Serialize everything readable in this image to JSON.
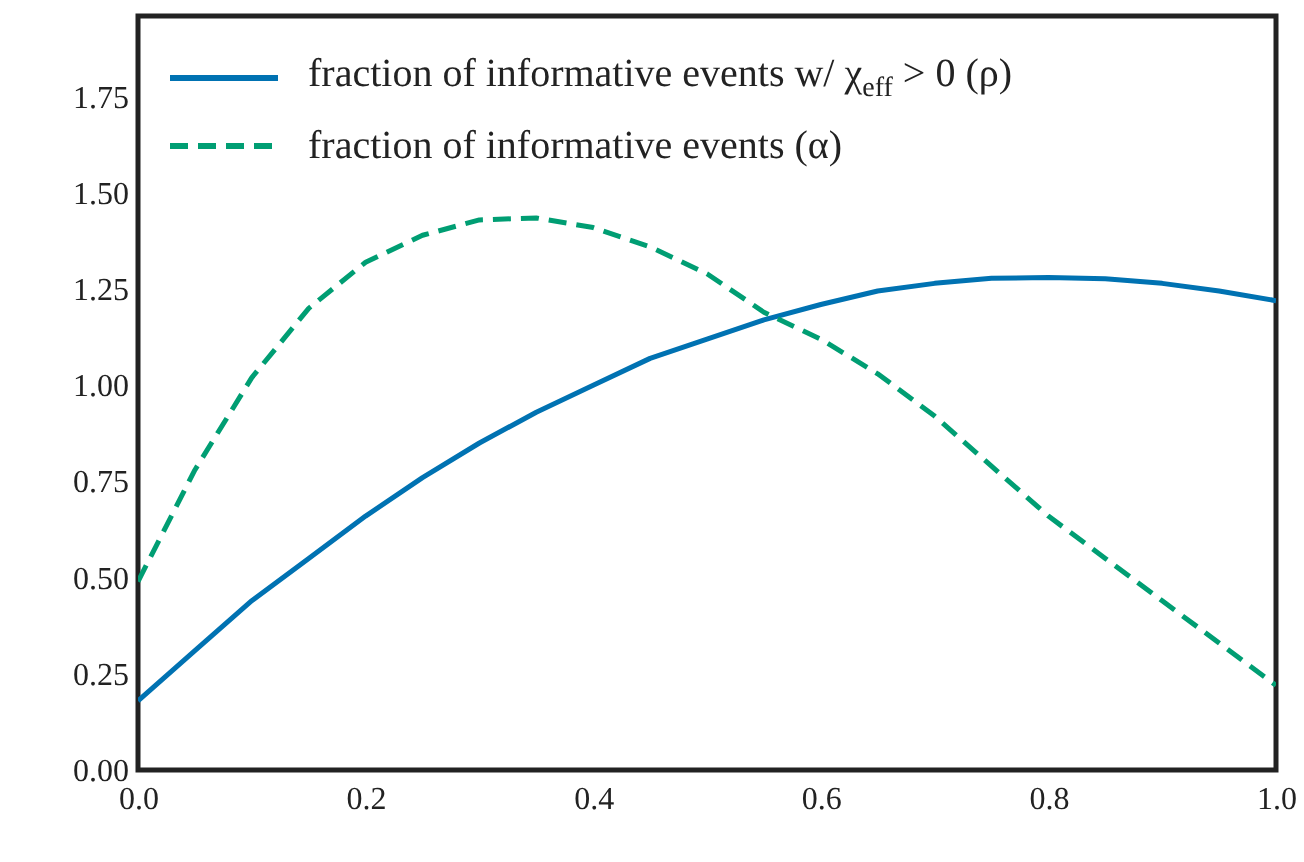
{
  "chart_data": {
    "type": "line",
    "x": [
      0,
      0.05,
      0.1,
      0.15,
      0.2,
      0.25,
      0.3,
      0.35,
      0.4,
      0.45,
      0.5,
      0.55,
      0.6,
      0.65,
      0.7,
      0.75,
      0.8,
      0.85,
      0.9,
      0.95,
      1.0
    ],
    "series": [
      {
        "name": "fraction of informative events w/ χ$_{eff}$ > 0 (ρ)",
        "color": "#0072b2",
        "line_style": "solid",
        "values": [
          0.18,
          0.31,
          0.44,
          0.55,
          0.66,
          0.76,
          0.85,
          0.93,
          1.0,
          1.07,
          1.12,
          1.17,
          1.21,
          1.245,
          1.265,
          1.278,
          1.28,
          1.277,
          1.265,
          1.245,
          1.22
        ]
      },
      {
        "name": "fraction of informative events (α)",
        "color": "#009e73",
        "line_style": "dashed",
        "values": [
          0.49,
          0.78,
          1.02,
          1.2,
          1.32,
          1.39,
          1.43,
          1.435,
          1.41,
          1.36,
          1.29,
          1.19,
          1.12,
          1.03,
          0.92,
          0.79,
          0.66,
          0.55,
          0.44,
          0.33,
          0.22
        ]
      }
    ],
    "xlim": [
      0,
      1
    ],
    "xticks": [
      {
        "value": 0,
        "label": "0.0"
      },
      {
        "value": 0.2,
        "label": "0.2"
      },
      {
        "value": 0.4,
        "label": "0.4"
      },
      {
        "value": 0.6,
        "label": "0.6"
      },
      {
        "value": 0.8,
        "label": "0.8"
      },
      {
        "value": 1,
        "label": "1.0"
      }
    ],
    "ylim": [
      0,
      1.96
    ],
    "yticks": [
      {
        "value": 0,
        "label": "0.00"
      },
      {
        "value": 0.25,
        "label": "0.25"
      },
      {
        "value": 0.5,
        "label": "0.50"
      },
      {
        "value": 0.75,
        "label": "0.75"
      },
      {
        "value": 1,
        "label": "1.00"
      },
      {
        "value": 1.25,
        "label": "1.25"
      },
      {
        "value": 1.5,
        "label": "1.50"
      },
      {
        "value": 1.75,
        "label": "1.75"
      }
    ],
    "grid": false,
    "legend": "top left",
    "marker": "none"
  }
}
